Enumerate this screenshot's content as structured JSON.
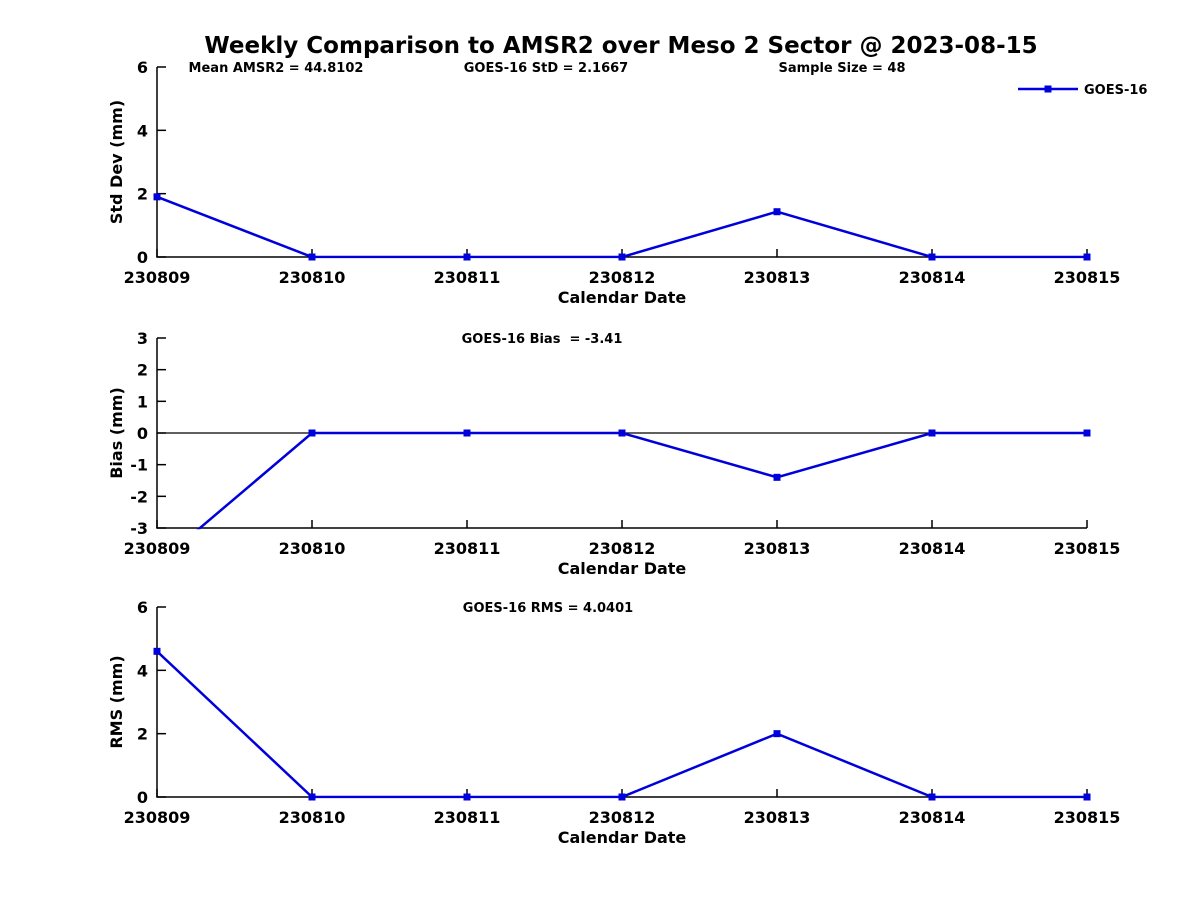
{
  "title": "Weekly Comparison to AMSR2 over Meso 2 Sector @ 2023-08-15",
  "legend": {
    "label": "GOES-16",
    "position": "top-right"
  },
  "chart_data": {
    "type": "line",
    "series_name": "GOES-16",
    "marker": "square",
    "grid": false,
    "line_color": "#0000dd",
    "axis_color": "#000000",
    "x": [
      "230809",
      "230810",
      "230811",
      "230812",
      "230813",
      "230814",
      "230815"
    ],
    "xlabel": "Calendar Date",
    "stats": {
      "mean_amsr2": 44.8102,
      "goes16_std": 2.1667,
      "sample_size": 48,
      "goes16_bias": -3.41,
      "goes16_rms": 4.0401
    },
    "subplots": [
      {
        "name": "std-dev",
        "ylabel": "Std Dev (mm)",
        "ylim": [
          0,
          6
        ],
        "yticks": [
          0,
          2,
          4,
          6
        ],
        "values": [
          1.9,
          0,
          0,
          0,
          1.43,
          0,
          0
        ],
        "annotations": [
          "Mean AMSR2 = 44.8102",
          "GOES-16 StD = 2.1667",
          "Sample Size = 48"
        ],
        "show_legend": true
      },
      {
        "name": "bias",
        "ylabel": "Bias (mm)",
        "ylim": [
          -3,
          3
        ],
        "yticks": [
          3,
          2,
          1,
          0,
          -1,
          -2,
          -3
        ],
        "zero_line": true,
        "values": [
          -4.15,
          0,
          0,
          0,
          -1.4,
          0,
          0
        ],
        "annotations": [
          "GOES-16 Bias  = -3.41"
        ],
        "show_legend": false
      },
      {
        "name": "rms",
        "ylabel": "RMS (mm)",
        "ylim": [
          0,
          6
        ],
        "yticks": [
          0,
          2,
          4,
          6
        ],
        "values": [
          4.6,
          0,
          0,
          0,
          2.0,
          0,
          0
        ],
        "annotations": [
          "GOES-16 RMS = 4.0401"
        ],
        "show_legend": false
      }
    ]
  }
}
